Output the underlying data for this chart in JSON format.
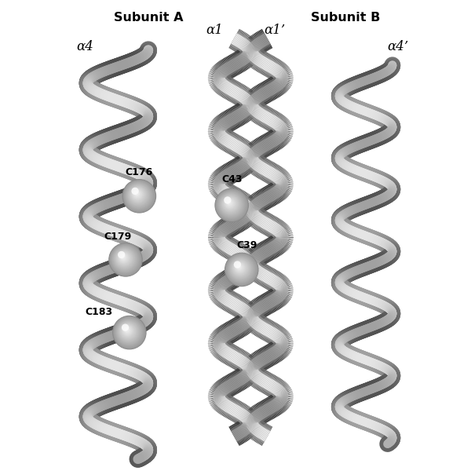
{
  "background_color": "#ffffff",
  "subunit_a_label": "Subunit A",
  "subunit_b_label": "Subunit B",
  "alpha4_label": "α4",
  "alpha1_label": "α1",
  "alpha1p_label": "α1’",
  "alpha4p_label": "α4’",
  "figsize": [
    6.0,
    6.0
  ],
  "dpi": 100,
  "xlim": [
    0,
    6
  ],
  "ylim": [
    0,
    6.2
  ],
  "helix_lw_outer": 14,
  "helix_lw_inner": 8,
  "helix_gray_dark": 0.35,
  "helix_gray_mid": 0.65,
  "helix_gray_light": 0.92,
  "sphere_gray_dark": 0.6,
  "sphere_gray_light": 0.92,
  "sphere_highlight": 0.99
}
